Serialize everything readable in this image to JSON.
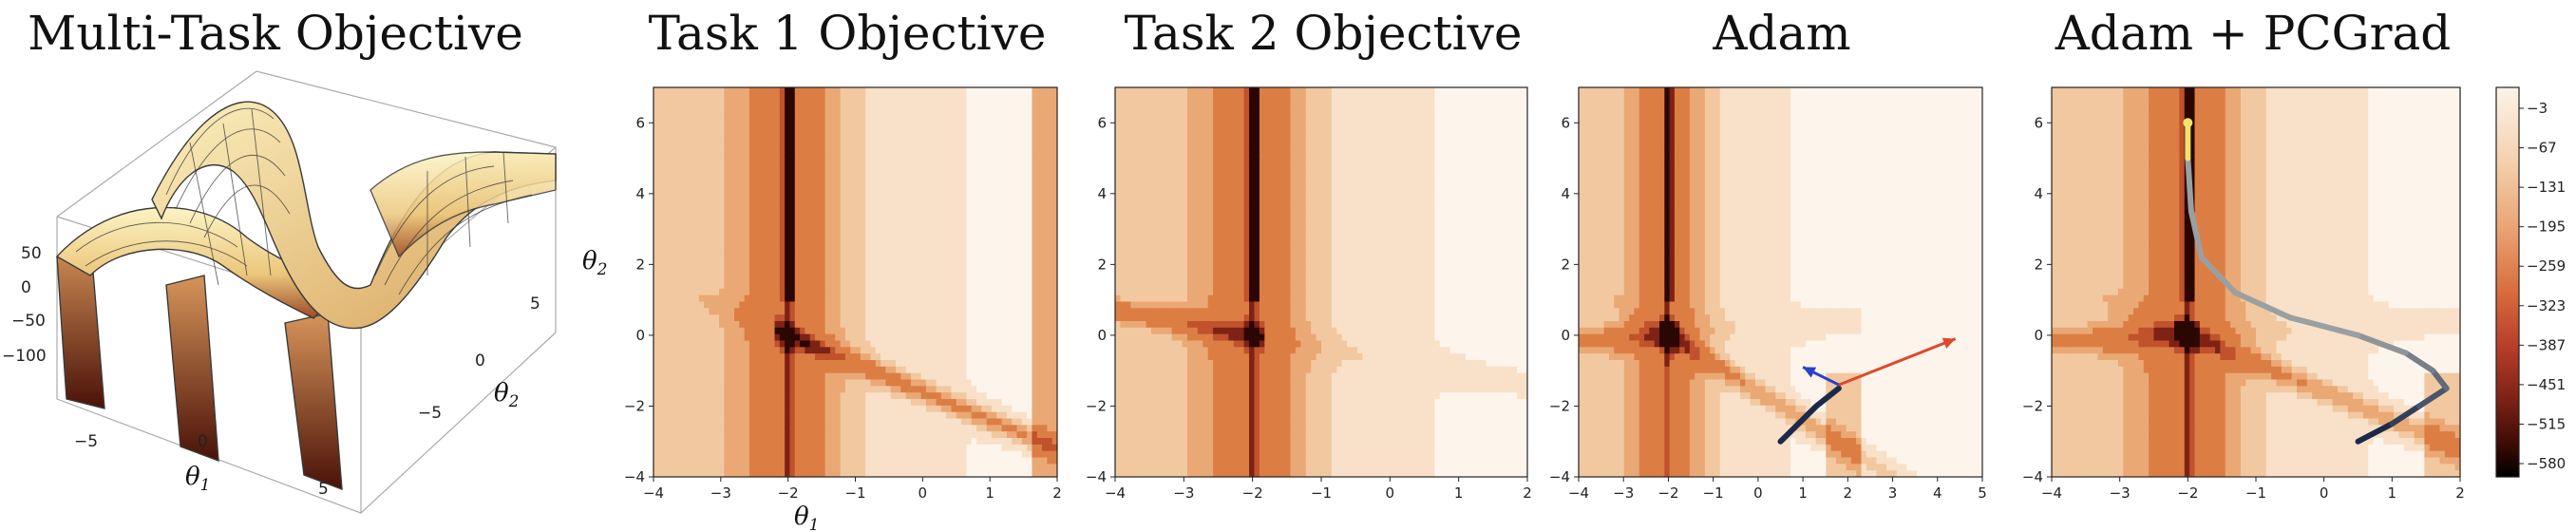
{
  "chart_data": [
    {
      "type": "surface3d",
      "title": "Multi-Task Objective",
      "xlabel": "θ",
      "xlabel_sub": "1",
      "ylabel": "θ",
      "ylabel_sub": "2",
      "z_ticks": [
        "50",
        "0",
        "−50",
        "−100"
      ],
      "x_ticks": [
        "−5",
        "0",
        "5"
      ],
      "y_ticks": [
        "5",
        "0",
        "−5"
      ],
      "colors": {
        "surface_light": "#fbf1b8",
        "surface_mid": "#e9c27a",
        "surface_dark": "#7a2b18"
      }
    },
    {
      "type": "heatmap",
      "title": "Task 1 Objective",
      "xlabel": "θ",
      "xlabel_sub": "1",
      "ylabel": "θ",
      "ylabel_sub": "2",
      "xlim": [
        -4,
        2
      ],
      "ylim": [
        -4,
        7
      ],
      "x_ticks": [
        "−4",
        "−3",
        "−2",
        "−1",
        "0",
        "1",
        "2"
      ],
      "y_ticks": [
        "6",
        "4",
        "2",
        "0",
        "−2",
        "−4"
      ],
      "bands": [
        {
          "x": [
            -4,
            -3.5
          ],
          "v": 0.4
        },
        {
          "x": [
            -3.5,
            -2.8
          ],
          "v": 0.3
        },
        {
          "x": [
            -2.8,
            -2.3
          ],
          "v": 0.24
        },
        {
          "x": [
            -2.3,
            -2.1
          ],
          "v": 0.5
        },
        {
          "x": [
            -2.1,
            -1.9
          ],
          "v": 0.8
        },
        {
          "x": [
            -1.9,
            -1.5
          ],
          "v": 0.45
        },
        {
          "x": [
            -1.5,
            -0.6
          ],
          "v": 0.3
        },
        {
          "x": [
            -0.6,
            0.6
          ],
          "v": 0.22
        },
        {
          "x": [
            0.6,
            1.3
          ],
          "v": 0.15
        },
        {
          "x": [
            1.3,
            2.0
          ],
          "v": 0.1
        }
      ],
      "colors": {
        "low": "#fcefe2",
        "high": "#f2c49c",
        "ridge": "#d9793a"
      }
    },
    {
      "type": "heatmap",
      "title": "Task 2 Objective",
      "xlim": [
        -4,
        2
      ],
      "ylim": [
        -4,
        7
      ],
      "x_ticks": [
        "−4",
        "−3",
        "−2",
        "−1",
        "0",
        "1",
        "2"
      ],
      "y_ticks": [
        "6",
        "4",
        "2",
        "0",
        "−2",
        "−4"
      ],
      "colors": {
        "low": "#fcefe2",
        "high": "#f2c49c",
        "ridge": "#d9793a"
      }
    },
    {
      "type": "heatmap",
      "title": "Adam",
      "xlim": [
        -4,
        5
      ],
      "ylim": [
        -4,
        7
      ],
      "x_ticks": [
        "−4",
        "−3",
        "−2",
        "−1",
        "0",
        "1",
        "2",
        "3",
        "4",
        "5"
      ],
      "y_ticks": [
        "6",
        "4",
        "2",
        "0",
        "−2",
        "−4"
      ],
      "trajectory": [
        [
          0.5,
          -3.0
        ],
        [
          0.9,
          -2.5
        ],
        [
          1.3,
          -2.0
        ],
        [
          1.6,
          -1.7
        ],
        [
          1.8,
          -1.5
        ]
      ],
      "arrows": [
        {
          "from": [
            1.8,
            -1.4
          ],
          "to": [
            4.4,
            -0.1
          ],
          "color": "#e0482a"
        },
        {
          "from": [
            1.8,
            -1.4
          ],
          "to": [
            1.0,
            -0.9
          ],
          "color": "#2743c9"
        }
      ],
      "colors": {
        "trajectory": "#1b2a4a"
      }
    },
    {
      "type": "heatmap",
      "title": "Adam + PCGrad",
      "xlim": [
        -4,
        2
      ],
      "ylim": [
        -4,
        7
      ],
      "x_ticks": [
        "−4",
        "−3",
        "−2",
        "−1",
        "0",
        "1",
        "2"
      ],
      "y_ticks": [
        "6",
        "4",
        "2",
        "0",
        "−2",
        "−4"
      ],
      "trajectory": [
        [
          0.5,
          -3.0
        ],
        [
          1.0,
          -2.5
        ],
        [
          1.4,
          -2.0
        ],
        [
          1.8,
          -1.5
        ],
        [
          1.6,
          -1.0
        ],
        [
          1.2,
          -0.5
        ],
        [
          0.5,
          0.0
        ],
        [
          -0.5,
          0.5
        ],
        [
          -1.3,
          1.2
        ],
        [
          -1.8,
          2.2
        ],
        [
          -1.95,
          3.5
        ],
        [
          -2.0,
          5.0
        ],
        [
          -2.0,
          6.0
        ]
      ],
      "colors": {
        "trajectory_start": "#1b2a4a",
        "trajectory_mid": "#9aa0a2",
        "trajectory_end": "#f2e26a"
      }
    },
    {
      "type": "colorbar",
      "ticks": [
        "−3",
        "−67",
        "−131",
        "−195",
        "−259",
        "−323",
        "−387",
        "−451",
        "−515",
        "−580"
      ],
      "colors": [
        "#fbf1e6",
        "#f5d3b0",
        "#eaa474",
        "#d96e3f",
        "#b8402a",
        "#7e2215",
        "#3a0a05",
        "#000000"
      ]
    }
  ]
}
